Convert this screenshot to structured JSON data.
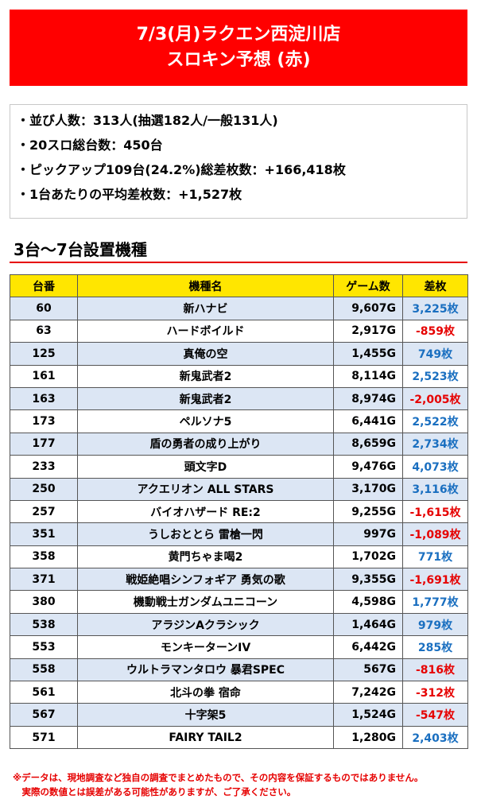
{
  "header": {
    "line1": "7/3(月)ラクエン西淀川店",
    "line2": "スロキン予想 (赤)"
  },
  "summary": [
    "・並び人数：313人(抽選182人/一般131人)",
    "・20スロ総台数：450台",
    "・ピックアップ109台(24.2%)総差枚数：+166,418枚",
    "・1台あたりの平均差枚数：+1,527枚"
  ],
  "section_title": "3台～7台設置機種",
  "table": {
    "headers": [
      "台番",
      "機種名",
      "ゲーム数",
      "差枚"
    ],
    "rows": [
      {
        "num": "60",
        "name": "新ハナビ",
        "games": "9,607G",
        "diff": "3,225枚",
        "sign": "pos"
      },
      {
        "num": "63",
        "name": "ハードボイルド",
        "games": "2,917G",
        "diff": "-859枚",
        "sign": "neg"
      },
      {
        "num": "125",
        "name": "真俺の空",
        "games": "1,455G",
        "diff": "749枚",
        "sign": "pos"
      },
      {
        "num": "161",
        "name": "新鬼武者2",
        "games": "8,114G",
        "diff": "2,523枚",
        "sign": "pos"
      },
      {
        "num": "163",
        "name": "新鬼武者2",
        "games": "8,974G",
        "diff": "-2,005枚",
        "sign": "neg"
      },
      {
        "num": "173",
        "name": "ペルソナ5",
        "games": "6,441G",
        "diff": "2,522枚",
        "sign": "pos"
      },
      {
        "num": "177",
        "name": "盾の勇者の成り上がり",
        "games": "8,659G",
        "diff": "2,734枚",
        "sign": "pos"
      },
      {
        "num": "233",
        "name": "頭文字D",
        "games": "9,476G",
        "diff": "4,073枚",
        "sign": "pos"
      },
      {
        "num": "250",
        "name": "アクエリオン ALL STARS",
        "games": "3,170G",
        "diff": "3,116枚",
        "sign": "pos"
      },
      {
        "num": "257",
        "name": "バイオハザード RE:2",
        "games": "9,255G",
        "diff": "-1,615枚",
        "sign": "neg"
      },
      {
        "num": "351",
        "name": "うしおととら 雷槍一閃",
        "games": "997G",
        "diff": "-1,089枚",
        "sign": "neg"
      },
      {
        "num": "358",
        "name": "黄門ちゃま喝2",
        "games": "1,702G",
        "diff": "771枚",
        "sign": "pos"
      },
      {
        "num": "371",
        "name": "戦姫絶唱シンフォギア 勇気の歌",
        "games": "9,355G",
        "diff": "-1,691枚",
        "sign": "neg"
      },
      {
        "num": "380",
        "name": "機動戦士ガンダムユニコーン",
        "games": "4,598G",
        "diff": "1,777枚",
        "sign": "pos"
      },
      {
        "num": "538",
        "name": "アラジンAクラシック",
        "games": "1,464G",
        "diff": "979枚",
        "sign": "pos"
      },
      {
        "num": "553",
        "name": "モンキーターンIV",
        "games": "6,442G",
        "diff": "285枚",
        "sign": "pos"
      },
      {
        "num": "558",
        "name": "ウルトラマンタロウ 暴君SPEC",
        "games": "567G",
        "diff": "-816枚",
        "sign": "neg"
      },
      {
        "num": "561",
        "name": "北斗の拳 宿命",
        "games": "7,242G",
        "diff": "-312枚",
        "sign": "neg"
      },
      {
        "num": "567",
        "name": "十字架5",
        "games": "1,524G",
        "diff": "-547枚",
        "sign": "neg"
      },
      {
        "num": "571",
        "name": "FAIRY TAIL2",
        "games": "1,280G",
        "diff": "2,403枚",
        "sign": "pos"
      }
    ]
  },
  "footnote": {
    "line1": "※データは、現地調査など独自の調査でまとめたもので、その内容を保証するものではありません。",
    "line2": "　実際の数値とは誤差がある可能性がありますが、ご了承ください。"
  },
  "colors": {
    "banner_red": "#ff0000",
    "header_yellow": "#ffe600",
    "row_blue": "#dce6f4",
    "positive_blue": "#1a6fc0",
    "negative_red": "#e60000"
  }
}
